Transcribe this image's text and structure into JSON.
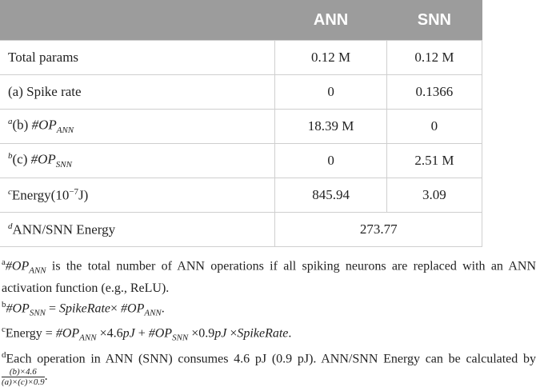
{
  "table": {
    "header": [
      "ANN",
      "SNN"
    ],
    "rows": [
      {
        "label": [
          "Total params"
        ],
        "ann": "0.12 M",
        "snn": "0.12 M"
      },
      {
        "label": [
          "(a) Spike rate"
        ],
        "ann": "0",
        "snn": "0.1366"
      },
      {
        "label": [
          {
            "text": "a",
            "style": "sup"
          },
          "(b) ",
          {
            "text": "#OP",
            "style": "i"
          },
          {
            "text": "ANN",
            "style": "sub"
          }
        ],
        "ann": "18.39 M",
        "snn": "0"
      },
      {
        "label": [
          {
            "text": "b",
            "style": "sup"
          },
          "(c) ",
          {
            "text": "#OP",
            "style": "i"
          },
          {
            "text": "SNN",
            "style": "sub"
          }
        ],
        "ann": "0",
        "snn": "2.51 M"
      },
      {
        "label": [
          {
            "text": "c",
            "style": "sup"
          },
          "Energy(10",
          {
            "text": "−7",
            "style": "fsup"
          },
          "J)"
        ],
        "ann": "845.94",
        "snn": "3.09"
      },
      {
        "label": [
          {
            "text": "d",
            "style": "sup"
          },
          "ANN/SNN Energy"
        ],
        "merged": "273.77"
      }
    ]
  },
  "footnotes": [
    [
      {
        "text": "a",
        "style": "fsup"
      },
      {
        "text": "#OP",
        "style": "i"
      },
      {
        "text": "ANN",
        "style": "sub"
      },
      " is the total number of ANN operations if all spiking neurons are replaced with an ANN activation function (e.g., ReLU)."
    ],
    [
      {
        "text": "b",
        "style": "fsup"
      },
      {
        "text": "#OP",
        "style": "i"
      },
      {
        "text": "SNN",
        "style": "sub"
      },
      " = ",
      {
        "text": "SpikeRate",
        "style": "i"
      },
      "× ",
      {
        "text": "#OP",
        "style": "i"
      },
      {
        "text": "ANN",
        "style": "sub"
      },
      "."
    ],
    [
      {
        "text": "c",
        "style": "fsup"
      },
      "Energy = ",
      {
        "text": "#OP",
        "style": "i"
      },
      {
        "text": "ANN",
        "style": "sub"
      },
      " ×4.6",
      {
        "text": "pJ",
        "style": "i"
      },
      " + ",
      {
        "text": "#OP",
        "style": "i"
      },
      {
        "text": "SNN",
        "style": "sub"
      },
      " ×0.9",
      {
        "text": "pJ",
        "style": "i"
      },
      " ×",
      {
        "text": "SpikeRate",
        "style": "i"
      },
      "."
    ],
    [
      {
        "text": "d",
        "style": "fsup"
      },
      "Each operation in ANN (SNN) consumes 4.6 pJ (0.9 pJ). ANN/SNN Energy can be calculated by ",
      {
        "num": "(b)×4.6",
        "den": "(a)×(c)×0.9",
        "style": "frac"
      },
      "."
    ]
  ]
}
